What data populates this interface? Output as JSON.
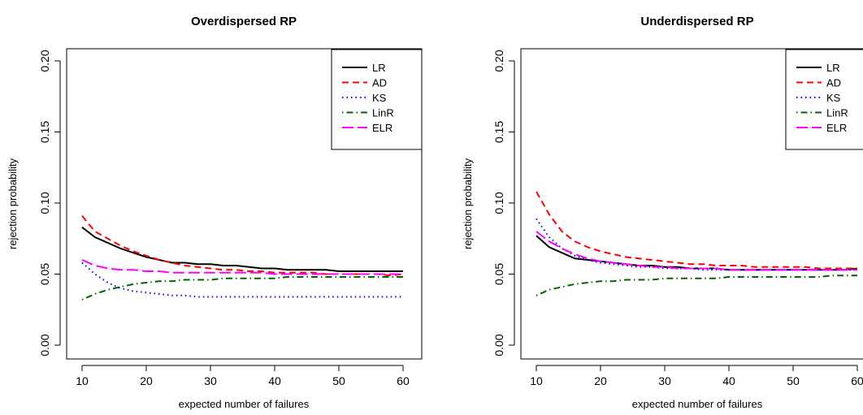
{
  "chart_data": [
    {
      "type": "line",
      "title": "Overdispersed RP",
      "xlabel": "expected number of failures",
      "ylabel": "rejection probability",
      "xlim": [
        10,
        60
      ],
      "ylim": [
        0,
        0.2
      ],
      "xticks": [
        "10",
        "20",
        "30",
        "40",
        "50",
        "60"
      ],
      "yticks": [
        "0.00",
        "0.05",
        "0.10",
        "0.15",
        "0.20"
      ],
      "legend_position": "top-right",
      "x": [
        10,
        12,
        14,
        16,
        18,
        20,
        22,
        24,
        26,
        28,
        30,
        32,
        34,
        36,
        38,
        40,
        42,
        44,
        46,
        48,
        50,
        52,
        54,
        56,
        58,
        60
      ],
      "series": [
        {
          "name": "LR",
          "color": "#000000",
          "dash": "solid",
          "values": [
            0.083,
            0.076,
            0.072,
            0.068,
            0.065,
            0.062,
            0.06,
            0.058,
            0.058,
            0.057,
            0.057,
            0.056,
            0.056,
            0.055,
            0.054,
            0.054,
            0.053,
            0.053,
            0.053,
            0.053,
            0.052,
            0.052,
            0.052,
            0.052,
            0.052,
            0.052
          ]
        },
        {
          "name": "AD",
          "color": "#ff0000",
          "dash": "dashed",
          "values": [
            0.091,
            0.08,
            0.075,
            0.07,
            0.066,
            0.063,
            0.06,
            0.058,
            0.056,
            0.055,
            0.054,
            0.053,
            0.053,
            0.052,
            0.052,
            0.051,
            0.051,
            0.051,
            0.051,
            0.05,
            0.05,
            0.05,
            0.05,
            0.05,
            0.049,
            0.05
          ]
        },
        {
          "name": "KS",
          "color": "#0000ff",
          "dash": "dotted",
          "values": [
            0.058,
            0.05,
            0.044,
            0.04,
            0.038,
            0.037,
            0.036,
            0.035,
            0.035,
            0.034,
            0.034,
            0.034,
            0.034,
            0.034,
            0.034,
            0.034,
            0.034,
            0.034,
            0.034,
            0.034,
            0.034,
            0.034,
            0.034,
            0.034,
            0.034,
            0.034
          ]
        },
        {
          "name": "LinR",
          "color": "#006400",
          "dash": "dotdash",
          "values": [
            0.032,
            0.036,
            0.039,
            0.041,
            0.043,
            0.044,
            0.045,
            0.045,
            0.046,
            0.046,
            0.046,
            0.047,
            0.047,
            0.047,
            0.047,
            0.047,
            0.048,
            0.048,
            0.048,
            0.048,
            0.048,
            0.048,
            0.048,
            0.048,
            0.048,
            0.048
          ]
        },
        {
          "name": "ELR",
          "color": "#ff00ff",
          "dash": "longdash",
          "values": [
            0.06,
            0.056,
            0.054,
            0.053,
            0.053,
            0.052,
            0.052,
            0.051,
            0.051,
            0.051,
            0.051,
            0.051,
            0.051,
            0.051,
            0.051,
            0.05,
            0.05,
            0.05,
            0.05,
            0.05,
            0.05,
            0.05,
            0.05,
            0.05,
            0.05,
            0.05
          ]
        }
      ]
    },
    {
      "type": "line",
      "title": "Underdispersed RP",
      "xlabel": "expected number of failures",
      "ylabel": "rejection probability",
      "xlim": [
        10,
        60
      ],
      "ylim": [
        0,
        0.2
      ],
      "xticks": [
        "10",
        "20",
        "30",
        "40",
        "50",
        "60"
      ],
      "yticks": [
        "0.00",
        "0.05",
        "0.10",
        "0.15",
        "0.20"
      ],
      "legend_position": "top-right",
      "x": [
        10,
        12,
        14,
        16,
        18,
        20,
        22,
        24,
        26,
        28,
        30,
        32,
        34,
        36,
        38,
        40,
        42,
        44,
        46,
        48,
        50,
        52,
        54,
        56,
        58,
        60
      ],
      "series": [
        {
          "name": "LR",
          "color": "#000000",
          "dash": "solid",
          "values": [
            0.077,
            0.069,
            0.065,
            0.061,
            0.06,
            0.059,
            0.058,
            0.057,
            0.056,
            0.056,
            0.055,
            0.055,
            0.054,
            0.054,
            0.054,
            0.053,
            0.053,
            0.053,
            0.053,
            0.053,
            0.053,
            0.053,
            0.053,
            0.053,
            0.053,
            0.054
          ]
        },
        {
          "name": "AD",
          "color": "#ff0000",
          "dash": "dashed",
          "values": [
            0.108,
            0.092,
            0.08,
            0.073,
            0.069,
            0.066,
            0.064,
            0.062,
            0.061,
            0.06,
            0.059,
            0.058,
            0.057,
            0.057,
            0.056,
            0.056,
            0.056,
            0.055,
            0.055,
            0.055,
            0.055,
            0.055,
            0.054,
            0.054,
            0.054,
            0.054
          ]
        },
        {
          "name": "KS",
          "color": "#0000ff",
          "dash": "dotted",
          "values": [
            0.089,
            0.076,
            0.068,
            0.063,
            0.06,
            0.058,
            0.057,
            0.056,
            0.055,
            0.055,
            0.054,
            0.054,
            0.054,
            0.053,
            0.053,
            0.053,
            0.053,
            0.053,
            0.053,
            0.053,
            0.053,
            0.053,
            0.053,
            0.053,
            0.053,
            0.053
          ]
        },
        {
          "name": "LinR",
          "color": "#006400",
          "dash": "dotdash",
          "values": [
            0.035,
            0.039,
            0.041,
            0.043,
            0.044,
            0.045,
            0.045,
            0.046,
            0.046,
            0.046,
            0.047,
            0.047,
            0.047,
            0.047,
            0.047,
            0.048,
            0.048,
            0.048,
            0.048,
            0.048,
            0.048,
            0.048,
            0.048,
            0.049,
            0.049,
            0.049
          ]
        },
        {
          "name": "ELR",
          "color": "#ff00ff",
          "dash": "longdash",
          "values": [
            0.08,
            0.073,
            0.068,
            0.064,
            0.061,
            0.059,
            0.058,
            0.057,
            0.056,
            0.055,
            0.055,
            0.054,
            0.054,
            0.054,
            0.054,
            0.053,
            0.053,
            0.053,
            0.053,
            0.053,
            0.053,
            0.053,
            0.053,
            0.053,
            0.053,
            0.053
          ]
        }
      ]
    }
  ]
}
